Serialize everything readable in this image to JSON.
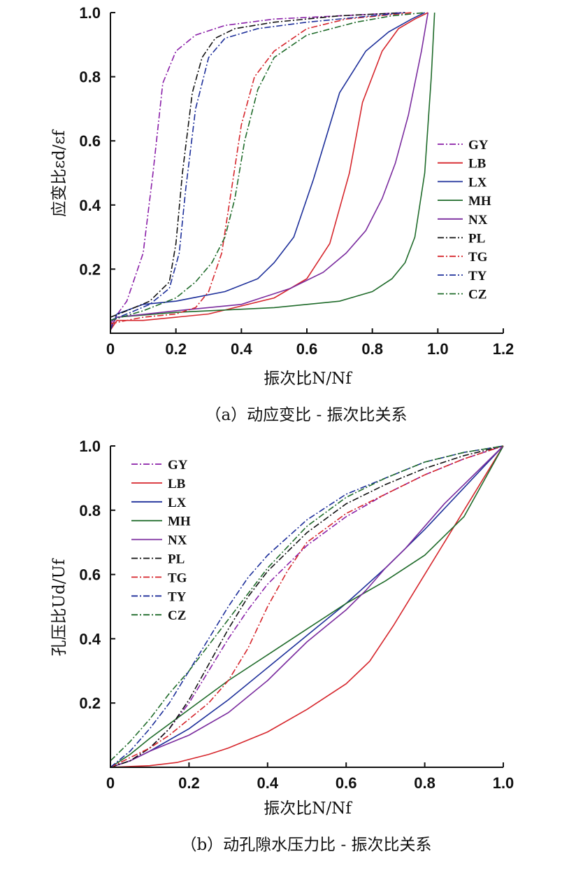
{
  "colors": {
    "GY": "#8a1fa8",
    "LB": "#d6262c",
    "LX": "#1d2f9a",
    "MH": "#1f6b2a",
    "NX": "#7a2b9e",
    "PL": "#111111",
    "TG": "#d6262c",
    "TY": "#1d2f9a",
    "CZ": "#1f6b2a"
  },
  "chart_data": [
    {
      "type": "line",
      "caption": "（a）动应变比 - 振次比关系",
      "xlabel": "振次比N/Nf",
      "ylabel": "应变比εd/εf",
      "xlim": [
        0,
        1.2
      ],
      "ylim": [
        0,
        1.0
      ],
      "xticks": [
        0,
        0.2,
        0.4,
        0.6,
        0.8,
        1.0,
        1.2
      ],
      "xtick_labels": [
        "0",
        "0.2",
        "0.4",
        "0.6",
        "0.8",
        "1.0",
        "1.2"
      ],
      "yticks": [
        0.2,
        0.4,
        0.6,
        0.8,
        1.0
      ],
      "ytick_labels": [
        "0.2",
        "0.4",
        "0.6",
        "0.8",
        "1.0"
      ],
      "legend_position": "right",
      "series": [
        {
          "name": "GY",
          "style": "dashdot",
          "x": [
            0,
            0.05,
            0.1,
            0.13,
            0.16,
            0.2,
            0.26,
            0.35,
            0.5,
            0.7,
            0.9
          ],
          "y": [
            0.03,
            0.1,
            0.25,
            0.5,
            0.78,
            0.88,
            0.93,
            0.96,
            0.98,
            0.99,
            1.0
          ]
        },
        {
          "name": "LB",
          "style": "solid",
          "x": [
            0,
            0.02,
            0.1,
            0.3,
            0.5,
            0.6,
            0.67,
            0.73,
            0.77,
            0.83,
            0.88,
            0.93,
            0.97
          ],
          "y": [
            0.01,
            0.04,
            0.04,
            0.06,
            0.11,
            0.17,
            0.28,
            0.5,
            0.72,
            0.88,
            0.95,
            0.98,
            1.0
          ]
        },
        {
          "name": "LX",
          "style": "solid",
          "x": [
            0,
            0.02,
            0.1,
            0.2,
            0.35,
            0.45,
            0.5,
            0.56,
            0.62,
            0.7,
            0.78,
            0.85,
            0.92,
            0.96
          ],
          "y": [
            0.01,
            0.06,
            0.09,
            0.1,
            0.13,
            0.17,
            0.22,
            0.3,
            0.48,
            0.75,
            0.88,
            0.94,
            0.98,
            1.0
          ]
        },
        {
          "name": "MH",
          "style": "solid",
          "x": [
            0,
            0.02,
            0.2,
            0.5,
            0.7,
            0.8,
            0.86,
            0.9,
            0.93,
            0.96,
            0.98,
            0.99
          ],
          "y": [
            0.02,
            0.05,
            0.065,
            0.08,
            0.1,
            0.13,
            0.17,
            0.22,
            0.3,
            0.5,
            0.8,
            1.0
          ]
        },
        {
          "name": "NX",
          "style": "solid",
          "x": [
            0,
            0.02,
            0.2,
            0.4,
            0.55,
            0.65,
            0.72,
            0.78,
            0.83,
            0.87,
            0.91,
            0.95,
            0.97
          ],
          "y": [
            0.02,
            0.05,
            0.07,
            0.09,
            0.14,
            0.19,
            0.25,
            0.32,
            0.42,
            0.53,
            0.68,
            0.88,
            1.0
          ]
        },
        {
          "name": "PL",
          "style": "dashdot",
          "x": [
            0,
            0.05,
            0.12,
            0.18,
            0.2,
            0.22,
            0.25,
            0.28,
            0.32,
            0.38,
            0.5,
            0.7,
            0.9
          ],
          "y": [
            0.05,
            0.07,
            0.1,
            0.16,
            0.28,
            0.5,
            0.75,
            0.86,
            0.92,
            0.95,
            0.97,
            0.99,
            1.0
          ]
        },
        {
          "name": "TG",
          "style": "dashdot",
          "x": [
            0,
            0.1,
            0.2,
            0.26,
            0.3,
            0.34,
            0.37,
            0.4,
            0.44,
            0.5,
            0.6,
            0.72,
            0.82,
            0.92
          ],
          "y": [
            0.03,
            0.05,
            0.06,
            0.08,
            0.13,
            0.25,
            0.45,
            0.65,
            0.8,
            0.88,
            0.95,
            0.98,
            0.99,
            1.0
          ]
        },
        {
          "name": "TY",
          "style": "dashdot",
          "x": [
            0,
            0.05,
            0.12,
            0.18,
            0.21,
            0.23,
            0.26,
            0.3,
            0.35,
            0.45,
            0.6,
            0.8,
            0.9
          ],
          "y": [
            0.04,
            0.06,
            0.09,
            0.14,
            0.25,
            0.45,
            0.7,
            0.86,
            0.92,
            0.95,
            0.97,
            0.99,
            1.0
          ]
        },
        {
          "name": "CZ",
          "style": "dashdot",
          "x": [
            0,
            0.1,
            0.2,
            0.26,
            0.31,
            0.35,
            0.38,
            0.41,
            0.45,
            0.5,
            0.6,
            0.75,
            0.86,
            0.96
          ],
          "y": [
            0.04,
            0.07,
            0.11,
            0.16,
            0.22,
            0.3,
            0.42,
            0.6,
            0.76,
            0.86,
            0.93,
            0.97,
            0.99,
            1.0
          ]
        }
      ]
    },
    {
      "type": "line",
      "caption": "（b）动孔隙水压力比 - 振次比关系",
      "xlabel": "振次比N/Nf",
      "ylabel": "孔压比Ud/Uf",
      "xlim": [
        0,
        1.0
      ],
      "ylim": [
        0,
        1.0
      ],
      "xticks": [
        0,
        0.2,
        0.4,
        0.6,
        0.8,
        1.0
      ],
      "xtick_labels": [
        "0",
        "0.2",
        "0.4",
        "0.6",
        "0.8",
        "1.0"
      ],
      "yticks": [
        0.2,
        0.4,
        0.6,
        0.8,
        1.0
      ],
      "ytick_labels": [
        "0.2",
        "0.4",
        "0.6",
        "0.8",
        "1.0"
      ],
      "legend_position": "top-left",
      "series": [
        {
          "name": "GY",
          "style": "dashdot",
          "x": [
            0,
            0.05,
            0.1,
            0.15,
            0.2,
            0.25,
            0.3,
            0.35,
            0.4,
            0.5,
            0.6,
            0.7,
            0.8,
            0.9,
            1.0
          ],
          "y": [
            0,
            0.02,
            0.06,
            0.12,
            0.2,
            0.3,
            0.4,
            0.49,
            0.57,
            0.69,
            0.78,
            0.85,
            0.91,
            0.96,
            1.0
          ]
        },
        {
          "name": "LB",
          "style": "solid",
          "x": [
            0,
            0.1,
            0.17,
            0.25,
            0.3,
            0.4,
            0.5,
            0.6,
            0.66,
            0.72,
            0.8,
            0.88,
            0.95,
            1.0
          ],
          "y": [
            0,
            0.005,
            0.015,
            0.04,
            0.06,
            0.11,
            0.18,
            0.26,
            0.33,
            0.44,
            0.6,
            0.76,
            0.9,
            1.0
          ]
        },
        {
          "name": "LX",
          "style": "solid",
          "x": [
            0,
            0.05,
            0.1,
            0.2,
            0.3,
            0.4,
            0.5,
            0.6,
            0.7,
            0.8,
            0.9,
            1.0
          ],
          "y": [
            0,
            0.02,
            0.05,
            0.12,
            0.21,
            0.31,
            0.41,
            0.51,
            0.62,
            0.74,
            0.87,
            1.0
          ]
        },
        {
          "name": "MH",
          "style": "solid",
          "x": [
            0,
            0.05,
            0.1,
            0.2,
            0.3,
            0.4,
            0.5,
            0.6,
            0.7,
            0.8,
            0.9,
            1.0
          ],
          "y": [
            0,
            0.04,
            0.09,
            0.18,
            0.27,
            0.35,
            0.43,
            0.51,
            0.58,
            0.66,
            0.78,
            1.0
          ]
        },
        {
          "name": "NX",
          "style": "solid",
          "x": [
            0,
            0.05,
            0.1,
            0.2,
            0.3,
            0.4,
            0.45,
            0.5,
            0.55,
            0.6,
            0.65,
            0.7,
            0.75,
            0.8,
            0.85,
            0.9,
            0.95,
            1.0
          ],
          "y": [
            0,
            0.02,
            0.05,
            0.1,
            0.17,
            0.27,
            0.33,
            0.39,
            0.44,
            0.49,
            0.55,
            0.62,
            0.68,
            0.75,
            0.82,
            0.88,
            0.94,
            1.0
          ]
        },
        {
          "name": "PL",
          "style": "dashdot",
          "x": [
            0,
            0.05,
            0.1,
            0.15,
            0.2,
            0.25,
            0.3,
            0.35,
            0.4,
            0.5,
            0.6,
            0.7,
            0.8,
            0.9,
            1.0
          ],
          "y": [
            0,
            0.02,
            0.06,
            0.12,
            0.21,
            0.32,
            0.43,
            0.53,
            0.61,
            0.73,
            0.82,
            0.88,
            0.93,
            0.97,
            1.0
          ]
        },
        {
          "name": "TG",
          "style": "dashdot",
          "x": [
            0,
            0.05,
            0.1,
            0.15,
            0.2,
            0.25,
            0.3,
            0.35,
            0.4,
            0.45,
            0.5,
            0.6,
            0.7,
            0.8,
            0.9,
            1.0
          ],
          "y": [
            0,
            0.03,
            0.06,
            0.1,
            0.15,
            0.2,
            0.27,
            0.37,
            0.5,
            0.61,
            0.7,
            0.79,
            0.85,
            0.91,
            0.96,
            1.0
          ]
        },
        {
          "name": "TY",
          "style": "dashdot",
          "x": [
            0,
            0.05,
            0.1,
            0.15,
            0.2,
            0.25,
            0.3,
            0.35,
            0.4,
            0.5,
            0.6,
            0.7,
            0.8,
            0.9,
            1.0
          ],
          "y": [
            0,
            0.05,
            0.12,
            0.2,
            0.3,
            0.4,
            0.5,
            0.59,
            0.66,
            0.77,
            0.85,
            0.9,
            0.95,
            0.98,
            1.0
          ]
        },
        {
          "name": "CZ",
          "style": "dashdot",
          "x": [
            0,
            0.05,
            0.1,
            0.15,
            0.2,
            0.25,
            0.3,
            0.35,
            0.4,
            0.5,
            0.6,
            0.7,
            0.8,
            0.9,
            1.0
          ],
          "y": [
            0.02,
            0.08,
            0.15,
            0.23,
            0.3,
            0.38,
            0.46,
            0.54,
            0.62,
            0.75,
            0.84,
            0.9,
            0.95,
            0.98,
            1.0
          ]
        }
      ]
    }
  ]
}
